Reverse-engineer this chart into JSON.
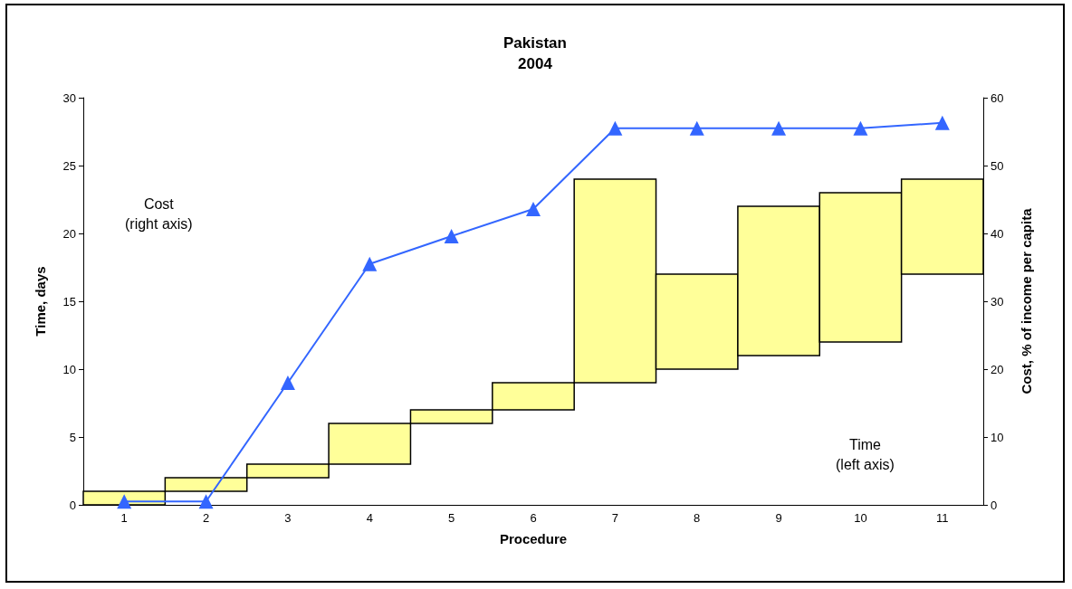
{
  "chart_data": {
    "type": "bar",
    "title": "Pakistan",
    "subtitle": "2004",
    "xlabel": "Procedure",
    "ylabel": "Time, days",
    "y2label": "Cost, % of income per capita",
    "categories": [
      "1",
      "2",
      "3",
      "4",
      "5",
      "6",
      "7",
      "8",
      "9",
      "10",
      "11"
    ],
    "series": [
      {
        "color": "#ffff99",
        "base": [
          0,
          1,
          2,
          3,
          6,
          7,
          9,
          10,
          11,
          12,
          17
        ],
        "values": [
          1,
          1,
          1,
          3,
          1,
          2,
          15,
          7,
          11,
          11,
          7
        ]
      },
      {
        "type": "line",
        "axis": "y2",
        "color": "#3366ff",
        "marker": "triangle",
        "line_style": "solid",
        "values": [
          0.5,
          0.5,
          18,
          35.5,
          39.6,
          43.6,
          55.5,
          55.5,
          55.5,
          55.5,
          56.3
        ]
      }
    ],
    "ylim": [
      0,
      30
    ],
    "yticks": [
      0,
      5,
      10,
      15,
      20,
      25,
      30
    ],
    "y2lim": [
      0,
      60
    ],
    "y2ticks": [
      0,
      10,
      20,
      30,
      40,
      50,
      60
    ],
    "grid": false,
    "annotations": [
      "Cost\n(right axis)",
      "Time\n(left axis)"
    ]
  }
}
